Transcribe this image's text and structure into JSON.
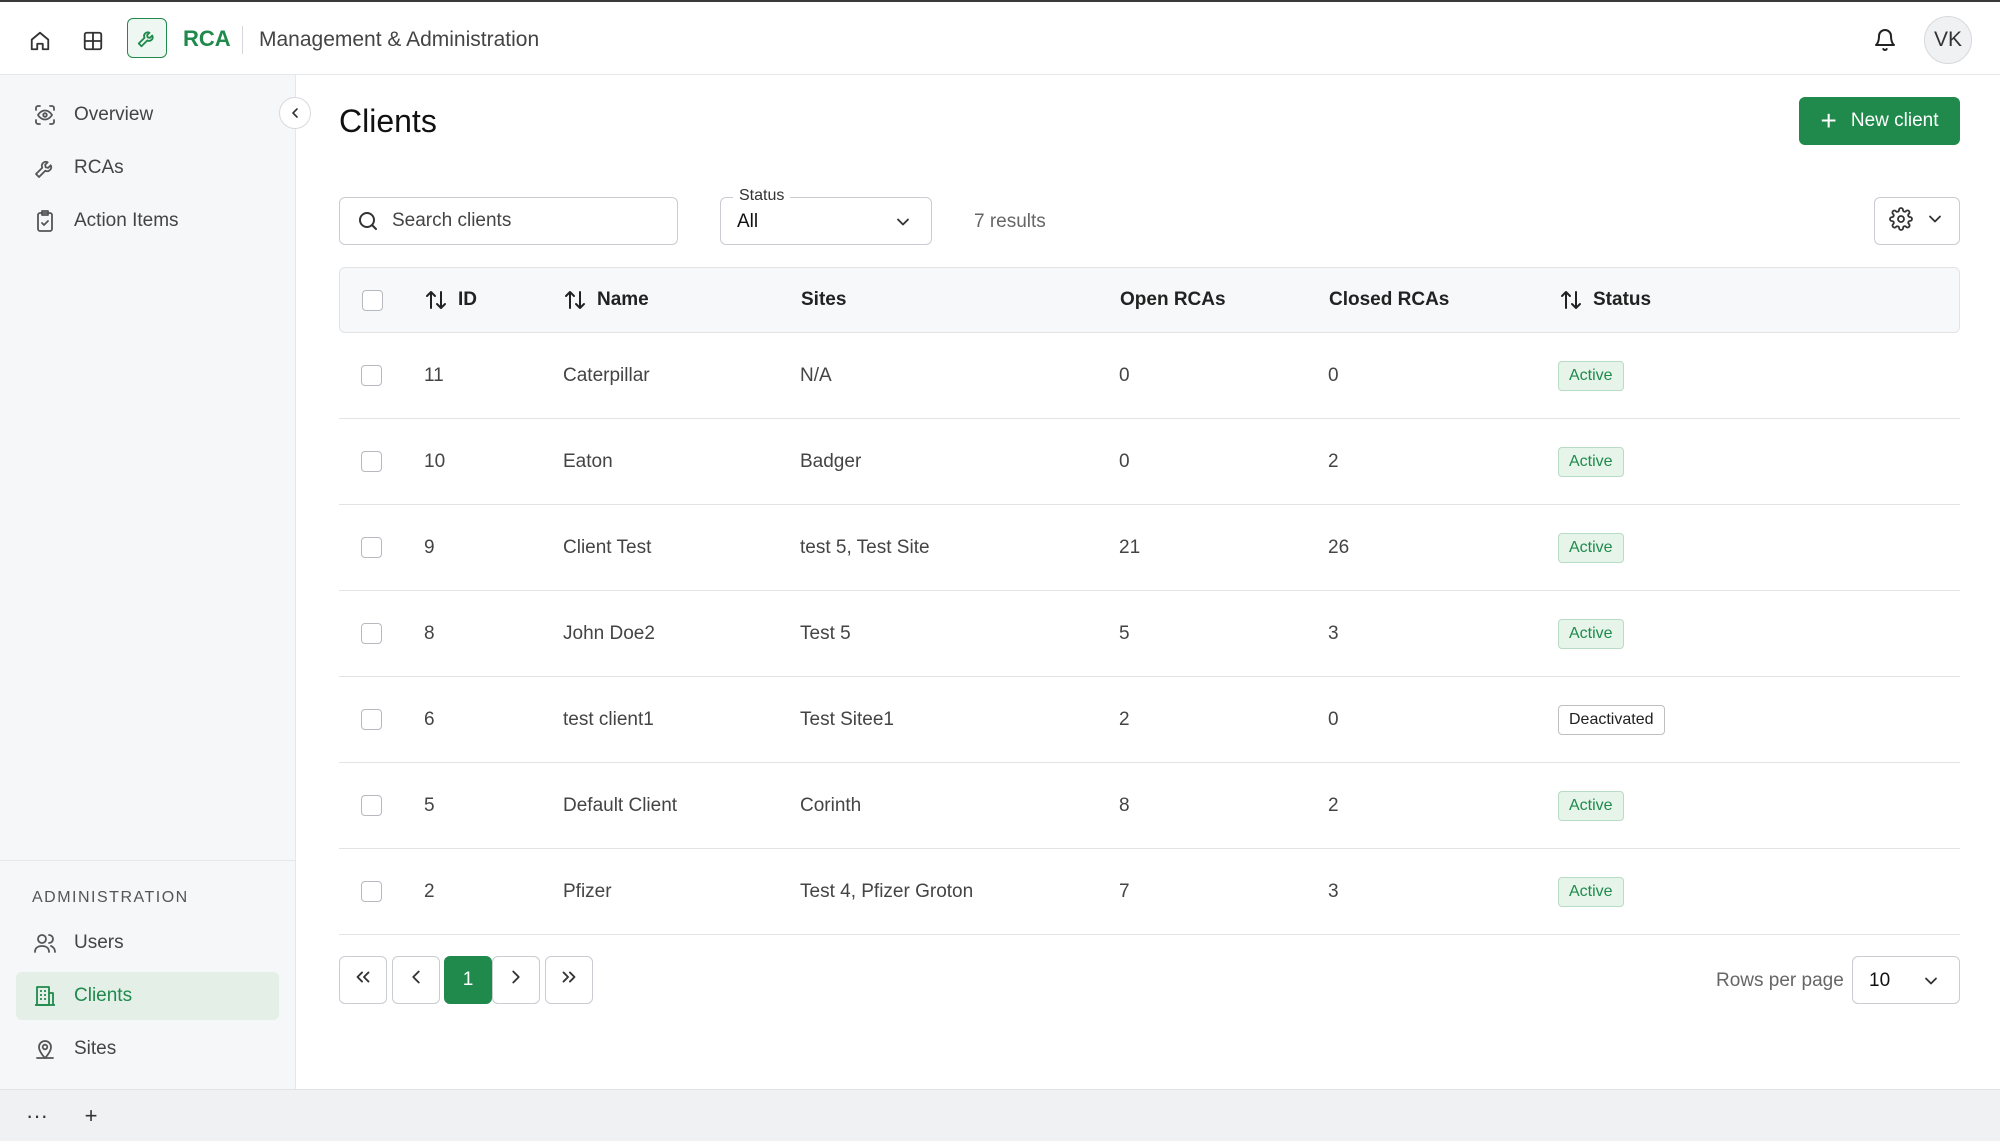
{
  "topbar": {
    "app_name": "RCA",
    "section_title": "Management & Administration",
    "avatar_initials": "VK",
    "icons": [
      "home-icon",
      "grid-icon",
      "wrench-icon",
      "bell-icon"
    ]
  },
  "sidebar": {
    "items": [
      {
        "label": "Overview",
        "icon": "overview-icon"
      },
      {
        "label": "RCAs",
        "icon": "wrench-icon"
      },
      {
        "label": "Action Items",
        "icon": "clipboard-check-icon"
      }
    ],
    "admin_label": "ADMINISTRATION",
    "admin_items": [
      {
        "label": "Users",
        "icon": "users-icon"
      },
      {
        "label": "Clients",
        "icon": "building-icon",
        "active": true
      },
      {
        "label": "Sites",
        "icon": "location-icon"
      }
    ]
  },
  "page": {
    "title": "Clients",
    "new_button": "New client"
  },
  "filters": {
    "search_placeholder": "Search clients",
    "status_label": "Status",
    "status_value": "All",
    "results_text": "7 results"
  },
  "table": {
    "columns": {
      "id": "ID",
      "name": "Name",
      "sites": "Sites",
      "open": "Open RCAs",
      "closed": "Closed RCAs",
      "status": "Status"
    },
    "rows": [
      {
        "id": "11",
        "name": "Caterpillar",
        "sites": "N/A",
        "open": "0",
        "closed": "0",
        "status": "Active"
      },
      {
        "id": "10",
        "name": "Eaton",
        "sites": "Badger",
        "open": "0",
        "closed": "2",
        "status": "Active"
      },
      {
        "id": "9",
        "name": "Client Test",
        "sites": "test 5, Test Site",
        "open": "21",
        "closed": "26",
        "status": "Active"
      },
      {
        "id": "8",
        "name": "John Doe2",
        "sites": "Test 5",
        "open": "5",
        "closed": "3",
        "status": "Active"
      },
      {
        "id": "6",
        "name": "test client1",
        "sites": "Test Sitee1",
        "open": "2",
        "closed": "0",
        "status": "Deactivated"
      },
      {
        "id": "5",
        "name": "Default Client",
        "sites": "Corinth",
        "open": "8",
        "closed": "2",
        "status": "Active"
      },
      {
        "id": "2",
        "name": "Pfizer",
        "sites": "Test 4, Pfizer Groton",
        "open": "7",
        "closed": "3",
        "status": "Active"
      }
    ]
  },
  "pagination": {
    "current_page": "1",
    "rows_per_page_label": "Rows per page",
    "rows_per_page_value": "10"
  },
  "bottombar": {
    "more": "···",
    "add": "+"
  },
  "colors": {
    "accent": "#1f8a4c",
    "active_badge_bg": "#e6f4ea",
    "sidebar_bg": "#f6f7f8"
  }
}
